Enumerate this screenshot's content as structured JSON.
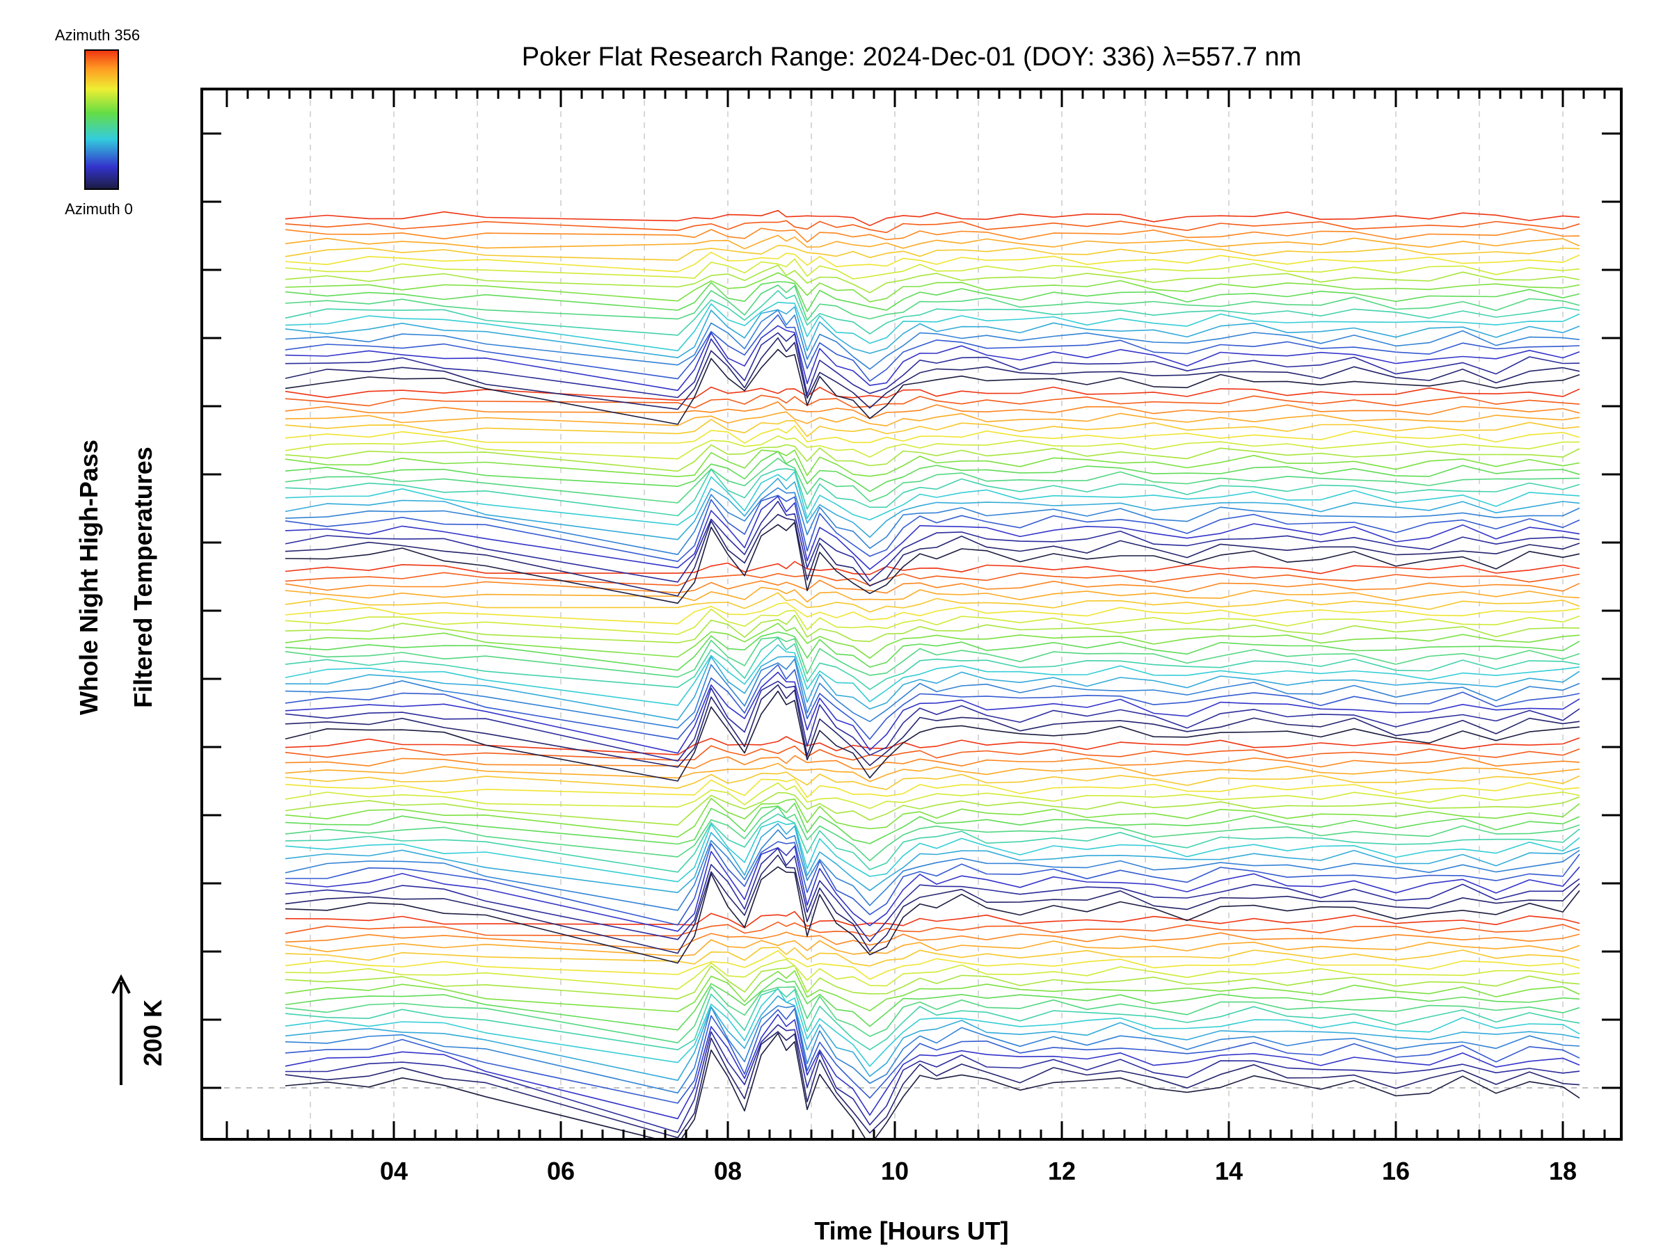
{
  "chart_data": {
    "type": "line",
    "title": "Poker Flat Research Range: 2024-Dec-01 (DOY: 336) λ=557.7 nm",
    "xlabel": "Time [Hours UT]",
    "ylabel_lines": [
      "Whole Night High-Pass",
      "Filtered Temperatures"
    ],
    "scale_label": "200 K",
    "x_tick_labels": [
      "04",
      "06",
      "08",
      "10",
      "12",
      "14",
      "16",
      "18"
    ],
    "x_ticks": [
      4,
      6,
      8,
      10,
      12,
      14,
      16,
      18
    ],
    "xlim": [
      1.7,
      18.7
    ],
    "x_unit": "hours UT",
    "grid": true,
    "colorbar": {
      "label_top": "Azimuth 356",
      "label_bottom": "Azimuth 0",
      "range": [
        0,
        356
      ],
      "colormap": "rainbow (black at 0 through blue, cyan, green, yellow, orange to red at 356)",
      "colors": [
        "#1c1c40",
        "#3333cc",
        "#33ccdd",
        "#66dd44",
        "#eeee33",
        "#ff9922",
        "#ee3311"
      ]
    },
    "series_layout": {
      "bands": 5,
      "lines_per_band": 20,
      "first_azimuth_deg": 0,
      "azimuth_step_deg": 18.7,
      "baseline": "each trace offset upward from the previous one; the lowest (azimuth 0) trace sits on the dashed zero line",
      "scale_arrow_represents_K": 200
    },
    "sample_times_hours": [
      2.7,
      3.2,
      3.7,
      4.1,
      4.6,
      5.1,
      7.4,
      7.6,
      7.8,
      8.0,
      8.2,
      8.4,
      8.6,
      8.7,
      8.8,
      8.95,
      9.1,
      9.3,
      9.5,
      9.7,
      9.9,
      10.1,
      10.3,
      10.5,
      10.8,
      11.1,
      11.5,
      11.9,
      12.3,
      12.7,
      13.1,
      13.5,
      13.9,
      14.3,
      14.7,
      15.1,
      15.5,
      16.0,
      16.4,
      16.8,
      17.2,
      17.6,
      18.0,
      18.2
    ],
    "band_profiles_K": {
      "band_1": [
        0,
        5,
        10,
        20,
        5,
        -15,
        -120,
        -60,
        80,
        20,
        -40,
        60,
        100,
        80,
        90,
        -40,
        30,
        -30,
        -60,
        -110,
        -70,
        -10,
        20,
        10,
        30,
        15,
        0,
        15,
        5,
        20,
        0,
        -10,
        10,
        20,
        5,
        0,
        10,
        -10,
        -5,
        15,
        -10,
        10,
        0,
        -10
      ],
      "band_2": [
        0,
        5,
        12,
        18,
        5,
        -12,
        -100,
        -50,
        70,
        20,
        -30,
        60,
        90,
        70,
        80,
        -40,
        30,
        -20,
        -50,
        -90,
        -60,
        -10,
        15,
        10,
        25,
        10,
        0,
        10,
        5,
        15,
        0,
        -10,
        10,
        15,
        5,
        0,
        10,
        -10,
        -5,
        10,
        -10,
        10,
        5,
        40
      ],
      "band_3": [
        0,
        5,
        10,
        15,
        5,
        -10,
        -90,
        -40,
        60,
        10,
        -30,
        50,
        80,
        60,
        70,
        -50,
        20,
        -20,
        -40,
        -80,
        -50,
        -10,
        15,
        10,
        20,
        10,
        0,
        10,
        5,
        15,
        0,
        -10,
        10,
        15,
        5,
        0,
        10,
        -10,
        -5,
        10,
        -10,
        10,
        5,
        20
      ],
      "band_4": [
        0,
        5,
        8,
        15,
        5,
        -10,
        -85,
        -40,
        55,
        10,
        -25,
        45,
        75,
        55,
        65,
        -55,
        15,
        -20,
        -40,
        -75,
        -50,
        -10,
        10,
        10,
        20,
        10,
        0,
        10,
        5,
        15,
        0,
        -10,
        10,
        15,
        5,
        0,
        10,
        -10,
        -5,
        10,
        -10,
        10,
        5,
        10
      ],
      "band_5": [
        0,
        5,
        8,
        12,
        5,
        -8,
        -70,
        -30,
        50,
        10,
        -20,
        40,
        70,
        50,
        60,
        -50,
        15,
        -15,
        -35,
        -65,
        -45,
        -10,
        10,
        10,
        15,
        10,
        0,
        10,
        5,
        10,
        0,
        -10,
        10,
        10,
        5,
        0,
        10,
        -10,
        -5,
        10,
        -10,
        10,
        5,
        10
      ]
    }
  }
}
